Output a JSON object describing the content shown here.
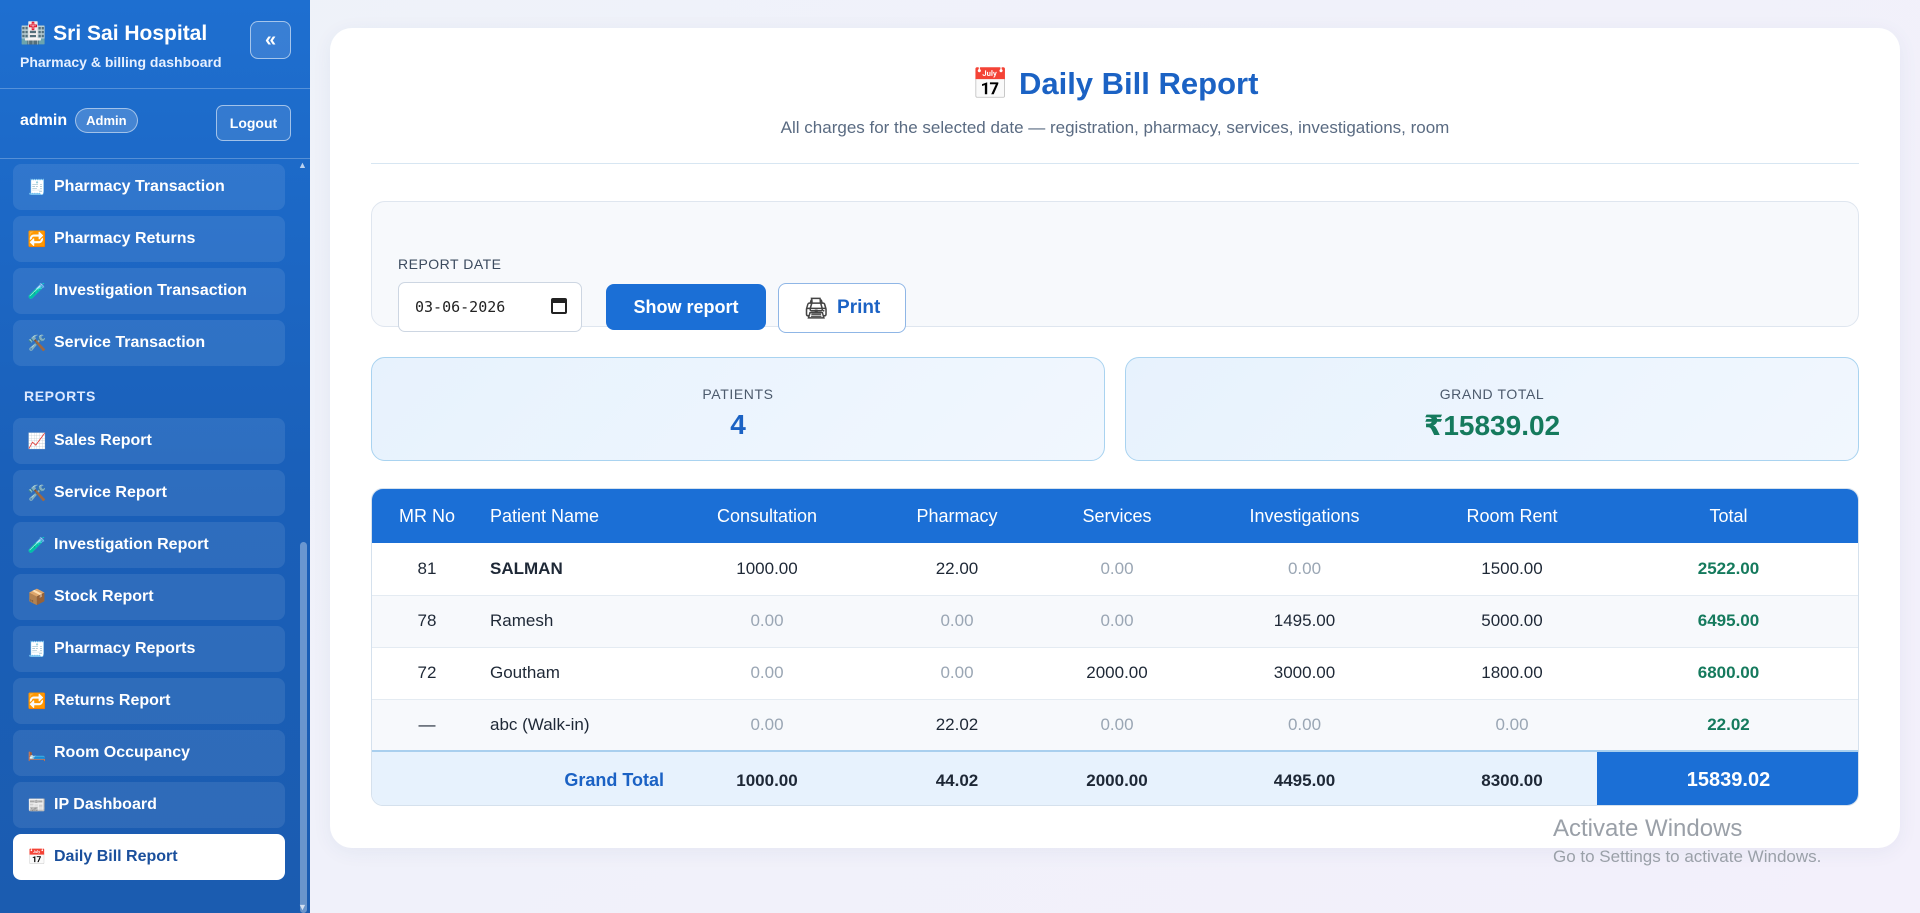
{
  "sidebar": {
    "brand_icon": "🏥",
    "brand_title": "Sri Sai Hospital",
    "brand_subtitle": "Pharmacy & billing dashboard",
    "collapse_label": "«",
    "user_name": "admin",
    "user_role": "Admin",
    "logout_label": "Logout",
    "items_top": [
      {
        "icon": "🧾",
        "label": "Pharmacy Transaction"
      },
      {
        "icon": "🔁",
        "label": "Pharmacy Returns"
      },
      {
        "icon": "🧪",
        "label": "Investigation Transaction"
      },
      {
        "icon": "🛠️",
        "label": "Service Transaction"
      }
    ],
    "reports_section_label": "REPORTS",
    "items_reports": [
      {
        "icon": "📈",
        "label": "Sales Report"
      },
      {
        "icon": "🛠️",
        "label": "Service Report"
      },
      {
        "icon": "🧪",
        "label": "Investigation Report"
      },
      {
        "icon": "📦",
        "label": "Stock Report"
      },
      {
        "icon": "🧾",
        "label": "Pharmacy Reports"
      },
      {
        "icon": "🔁",
        "label": "Returns Report"
      },
      {
        "icon": "🛏️",
        "label": "Room Occupancy"
      },
      {
        "icon": "📰",
        "label": "IP Dashboard"
      },
      {
        "icon": "📅",
        "label": "Daily Bill Report"
      }
    ]
  },
  "main": {
    "title_icon": "📅",
    "title": "Daily Bill Report",
    "subtitle": "All charges for the selected date — registration, pharmacy, services, investigations, room",
    "filter": {
      "date_label": "REPORT DATE",
      "date_value": "03-06-2026",
      "show_label": "Show report",
      "print_icon": "🖨",
      "print_label": "Print"
    },
    "stats": {
      "patients_label": "PATIENTS",
      "patients_value": "4",
      "grand_total_label": "GRAND TOTAL",
      "grand_total_value": "₹15839.02"
    },
    "table": {
      "headers": [
        "MR No",
        "Patient Name",
        "Consultation",
        "Pharmacy",
        "Services",
        "Investigations",
        "Room Rent",
        "Total"
      ],
      "rows": [
        {
          "mr": "81",
          "name": "SALMAN",
          "consultation": "1000.00",
          "pharmacy": "22.00",
          "services": "0.00",
          "investigations": "0.00",
          "room": "1500.00",
          "total": "2522.00"
        },
        {
          "mr": "78",
          "name": "Ramesh",
          "consultation": "0.00",
          "pharmacy": "0.00",
          "services": "0.00",
          "investigations": "1495.00",
          "room": "5000.00",
          "total": "6495.00"
        },
        {
          "mr": "72",
          "name": "Goutham",
          "consultation": "0.00",
          "pharmacy": "0.00",
          "services": "2000.00",
          "investigations": "3000.00",
          "room": "1800.00",
          "total": "6800.00"
        },
        {
          "mr": "—",
          "name": "abc (Walk-in)",
          "consultation": "0.00",
          "pharmacy": "22.02",
          "services": "0.00",
          "investigations": "0.00",
          "room": "0.00",
          "total": "22.02"
        }
      ],
      "footer": {
        "label": "Grand Total",
        "consultation": "1000.00",
        "pharmacy": "44.02",
        "services": "2000.00",
        "investigations": "4495.00",
        "room": "8300.00",
        "total": "15839.02"
      }
    }
  },
  "watermark": {
    "title": "Activate Windows",
    "subtitle": "Go to Settings to activate Windows."
  },
  "colors": {
    "sidebar": "#1e6fd0",
    "primary": "#1b6fd6",
    "total_green": "#157a5d"
  }
}
